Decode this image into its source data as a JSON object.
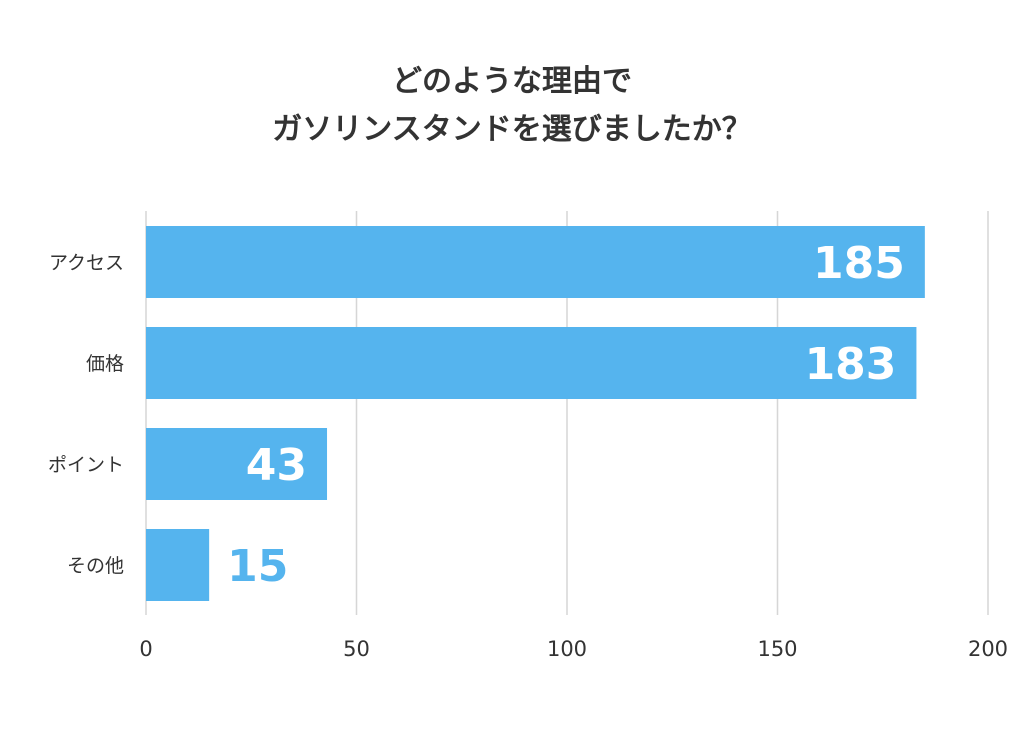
{
  "chart_data": {
    "type": "bar",
    "orientation": "horizontal",
    "title_lines": [
      "どのような理由で",
      "ガソリンスタンドを選びましたか？"
    ],
    "categories": [
      "アクセス",
      "価格",
      "ポイント",
      "その他"
    ],
    "values": [
      185,
      183,
      43,
      15
    ],
    "xlim": [
      0,
      200
    ],
    "xticks": [
      0,
      50,
      100,
      150,
      200
    ],
    "xlabel": "",
    "ylabel": "",
    "grid": true,
    "legend": "none",
    "bar_color": "#55b4ee",
    "label_color_inside": "#ffffff",
    "label_color_outside": "#55b4ee"
  }
}
